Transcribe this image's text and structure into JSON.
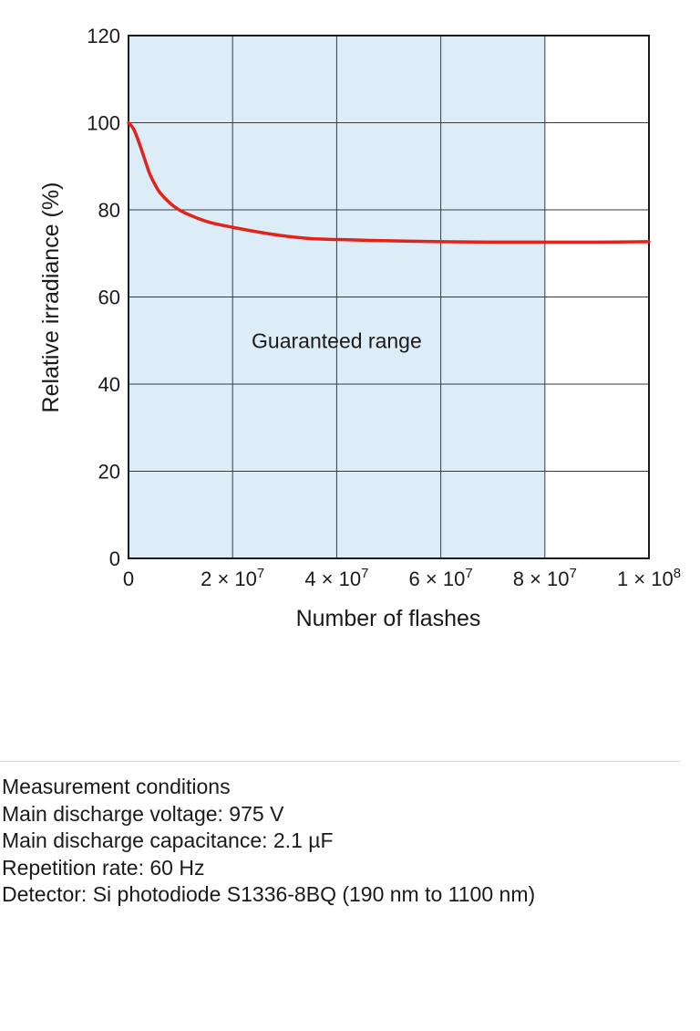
{
  "chart_data": {
    "type": "line",
    "xlabel": "Number of flashes",
    "ylabel": "Relative irradiance (%)",
    "xlim": [
      0,
      100000000
    ],
    "ylim": [
      0,
      120
    ],
    "x_ticks": [
      {
        "value": 0,
        "mantissa": "0",
        "exponent": ""
      },
      {
        "value": 20000000,
        "mantissa": "2 × 10",
        "exponent": "7"
      },
      {
        "value": 40000000,
        "mantissa": "4 × 10",
        "exponent": "7"
      },
      {
        "value": 60000000,
        "mantissa": "6 × 10",
        "exponent": "7"
      },
      {
        "value": 80000000,
        "mantissa": "8 × 10",
        "exponent": "7"
      },
      {
        "value": 100000000,
        "mantissa": "1 × 10",
        "exponent": "8"
      }
    ],
    "y_ticks": [
      0,
      20,
      40,
      60,
      80,
      100,
      120
    ],
    "grid": true,
    "shaded_region": {
      "x_start": 0,
      "x_end": 80000000,
      "label": "Guaranteed range",
      "color": "#dcedf8"
    },
    "series": [
      {
        "color": "#e2231a",
        "x": [
          0,
          1000000,
          2000000,
          3000000,
          4000000,
          5000000,
          6000000,
          8000000,
          10000000,
          13000000,
          16000000,
          20000000,
          25000000,
          30000000,
          35000000,
          40000000,
          50000000,
          60000000,
          70000000,
          80000000,
          90000000,
          100000000
        ],
        "y": [
          100,
          98.5,
          95.5,
          92,
          88.5,
          86,
          84,
          81.5,
          79.8,
          78.2,
          77,
          76,
          74.9,
          74,
          73.4,
          73.2,
          72.9,
          72.7,
          72.6,
          72.6,
          72.6,
          72.7
        ]
      }
    ]
  },
  "conditions": {
    "title": "Measurement conditions",
    "lines": [
      "Main discharge voltage:  975 V",
      "Main discharge capacitance: 2.1 µF",
      "Repetition rate: 60 Hz",
      "Detector: Si photodiode S1336-8BQ (190 nm to 1100 nm)"
    ]
  }
}
